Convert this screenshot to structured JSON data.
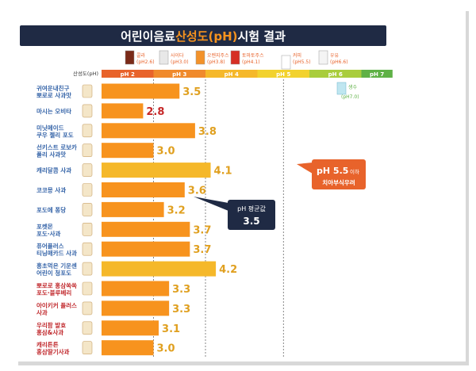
{
  "title": {
    "prefix": "어린이음료 ",
    "highlight": "산성도(pH)",
    "suffix": " 시험 결과"
  },
  "scale_label": "산성도(pH)",
  "colors": {
    "title_bg": "#1f2a44",
    "highlight": "#f7931e",
    "bar_orange": "#f7931e",
    "bar_yellow": "#f5b82a",
    "value_dark": "#c62828",
    "value_gold": "#e0a020",
    "name_blue": "#3564a8",
    "name_red": "#c0282c",
    "callout_bg": "#1f2a44"
  },
  "reference_drinks": [
    {
      "name": "콜라",
      "ph": "(pH2.6)",
      "icon": "cola-cup-icon"
    },
    {
      "name": "사이다",
      "ph": "(pH3.0)",
      "icon": "soda-cup-icon"
    },
    {
      "name": "오렌지주스",
      "ph": "(pH3.8)",
      "icon": "orange-juice-glass-icon"
    },
    {
      "name": "토마토주스",
      "ph": "(pH4.1)",
      "icon": "tomato-juice-glass-icon"
    },
    {
      "name": "커피",
      "ph": "(pH5.5)",
      "icon": "coffee-cup-icon"
    },
    {
      "name": "우유",
      "ph": "(pH6.6)",
      "icon": "milk-glass-icon"
    }
  ],
  "water": {
    "name": "생수",
    "ph": "(pH7.0)",
    "icon": "water-glass-icon"
  },
  "ph_scale": [
    {
      "label": "pH 2",
      "from": 2.0,
      "to": 3.0,
      "color": "#e8632b"
    },
    {
      "label": "pH 3",
      "from": 3.0,
      "to": 4.0,
      "color": "#f08a2c"
    },
    {
      "label": "pH 4",
      "from": 4.0,
      "to": 5.0,
      "color": "#f5b82a"
    },
    {
      "label": "pH 5",
      "from": 5.0,
      "to": 6.0,
      "color": "#f2d22e"
    },
    {
      "label": "pH 6",
      "from": 6.0,
      "to": 7.0,
      "color": "#a9cd3c"
    },
    {
      "label": "pH 7",
      "from": 7.0,
      "to": 7.6,
      "color": "#5fb146"
    }
  ],
  "average_callout": {
    "line1": "pH 평균값",
    "value": "3.5"
  },
  "threshold_callout": {
    "value": "pH 5.5",
    "unit": " 이하",
    "desc": "치아부식우려"
  },
  "chart_data": {
    "type": "bar",
    "orientation": "horizontal",
    "xlim": [
      2.0,
      7.6
    ],
    "reference_lines": [
      3.0,
      4.0,
      5.5
    ],
    "average": 3.5,
    "categories": [
      {
        "lines": [
          "귀여운내친구",
          "뽀로로 사과맛"
        ],
        "color": "blue"
      },
      {
        "lines": [
          "마시는 오비타"
        ],
        "color": "blue"
      },
      {
        "lines": [
          "미닛메이드",
          "쿠우 젤리 포도"
        ],
        "color": "blue"
      },
      {
        "lines": [
          "선키스트 로보카",
          "폴리 사과맛"
        ],
        "color": "blue"
      },
      {
        "lines": [
          "캐리달콤 사과"
        ],
        "color": "blue"
      },
      {
        "lines": [
          "코코몽 사과"
        ],
        "color": "blue"
      },
      {
        "lines": [
          "포도에 퐁당"
        ],
        "color": "blue"
      },
      {
        "lines": [
          "포켓몬",
          "포도·사과"
        ],
        "color": "blue"
      },
      {
        "lines": [
          "퓨어플러스",
          "티닝매카드 사과"
        ],
        "color": "blue"
      },
      {
        "lines": [
          "흥초먹은 기운센",
          "어린이 청포도"
        ],
        "color": "blue"
      },
      {
        "lines": [
          "뽀로로 홍삼쏙쏙",
          "포도·블루베리"
        ],
        "color": "red"
      },
      {
        "lines": [
          "아이키커 플러스",
          "사과"
        ],
        "color": "red"
      },
      {
        "lines": [
          "우리팜 발효",
          "홍삼&사과"
        ],
        "color": "red"
      },
      {
        "lines": [
          "캐리튼튼",
          "홍삼딸기사과"
        ],
        "color": "red"
      }
    ],
    "values": [
      3.5,
      2.8,
      3.8,
      3.0,
      4.1,
      3.6,
      3.2,
      3.7,
      3.7,
      4.2,
      3.3,
      3.3,
      3.1,
      3.0
    ],
    "value_labels": [
      "3.5",
      "2.8",
      "3.8",
      "3.0",
      "4.1",
      "3.6",
      "3.2",
      "3.7",
      "3.7",
      "4.2",
      "3.3",
      "3.3",
      "3.1",
      "3.0"
    ]
  }
}
